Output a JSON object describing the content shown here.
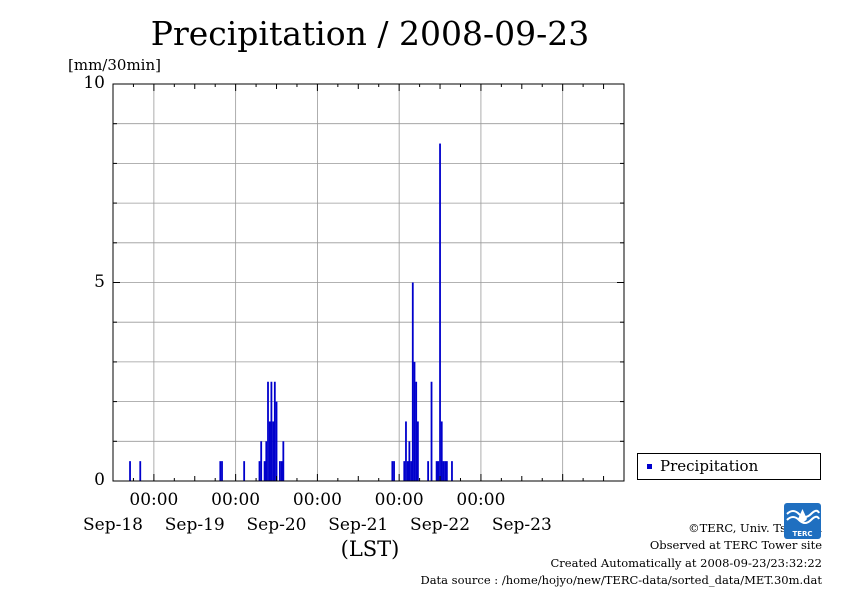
{
  "header": {
    "title": "Precipitation / 2008-09-23",
    "unit_label": "[mm/30min]"
  },
  "chart_data": {
    "type": "bar",
    "title": "Precipitation / 2008-09-23",
    "ylabel": "[mm/30min]",
    "xlabel": "(LST)",
    "ylim": [
      0,
      10
    ],
    "yticks": [
      "0",
      "5",
      "10"
    ],
    "xlim": [
      "2008-09-17 12:00",
      "2008-09-23 18:00"
    ],
    "x_time_labels": [
      "00:00",
      "00:00",
      "00:00",
      "00:00",
      "00:00"
    ],
    "x_date_labels": [
      "Sep-18",
      "Sep-19",
      "Sep-20",
      "Sep-21",
      "Sep-22",
      "Sep-23"
    ],
    "grid": true,
    "legend_position": "right",
    "color": "#0000cc",
    "series": [
      {
        "name": "Precipitation",
        "points": [
          [
            "2008-09-17 17:00",
            0.5
          ],
          [
            "2008-09-17 20:00",
            0.5
          ],
          [
            "2008-09-18 19:30",
            0.5
          ],
          [
            "2008-09-18 20:00",
            0.5
          ],
          [
            "2008-09-19 02:30",
            0.5
          ],
          [
            "2008-09-19 07:00",
            0.5
          ],
          [
            "2008-09-19 07:30",
            1.0
          ],
          [
            "2008-09-19 08:30",
            0.5
          ],
          [
            "2008-09-19 09:00",
            1.0
          ],
          [
            "2008-09-19 09:30",
            2.5
          ],
          [
            "2008-09-19 10:00",
            1.5
          ],
          [
            "2008-09-19 10:30",
            2.5
          ],
          [
            "2008-09-19 11:00",
            1.5
          ],
          [
            "2008-09-19 11:30",
            2.5
          ],
          [
            "2008-09-19 12:00",
            2.0
          ],
          [
            "2008-09-19 13:00",
            0.5
          ],
          [
            "2008-09-19 13:30",
            0.5
          ],
          [
            "2008-09-19 14:00",
            1.0
          ],
          [
            "2008-09-20 22:00",
            0.5
          ],
          [
            "2008-09-20 22:30",
            0.5
          ],
          [
            "2008-09-21 01:30",
            0.5
          ],
          [
            "2008-09-21 02:00",
            1.5
          ],
          [
            "2008-09-21 02:30",
            0.5
          ],
          [
            "2008-09-21 03:00",
            1.0
          ],
          [
            "2008-09-21 03:30",
            0.5
          ],
          [
            "2008-09-21 04:00",
            5.0
          ],
          [
            "2008-09-21 04:30",
            3.0
          ],
          [
            "2008-09-21 05:00",
            2.5
          ],
          [
            "2008-09-21 05:30",
            1.5
          ],
          [
            "2008-09-21 08:30",
            0.5
          ],
          [
            "2008-09-21 09:30",
            2.5
          ],
          [
            "2008-09-21 11:00",
            0.5
          ],
          [
            "2008-09-21 11:30",
            0.5
          ],
          [
            "2008-09-21 12:00",
            8.5
          ],
          [
            "2008-09-21 12:30",
            1.5
          ],
          [
            "2008-09-21 13:00",
            0.5
          ],
          [
            "2008-09-21 13:30",
            0.5
          ],
          [
            "2008-09-21 14:00",
            0.5
          ],
          [
            "2008-09-21 15:30",
            0.5
          ]
        ]
      }
    ]
  },
  "legend": {
    "label": "Precipitation",
    "color": "#0000cc"
  },
  "footer": {
    "copyright": "©TERC, Univ. Tsukuba",
    "observed": "Observed at TERC Tower site",
    "created": "Created Automatically at 2008-09-23/23:32:22",
    "source": "Data source : /home/hojyo/new/TERC-data/sorted_data/MET.30m.dat"
  },
  "logo": {
    "text": "TERC",
    "color": "#1f6fc0"
  }
}
